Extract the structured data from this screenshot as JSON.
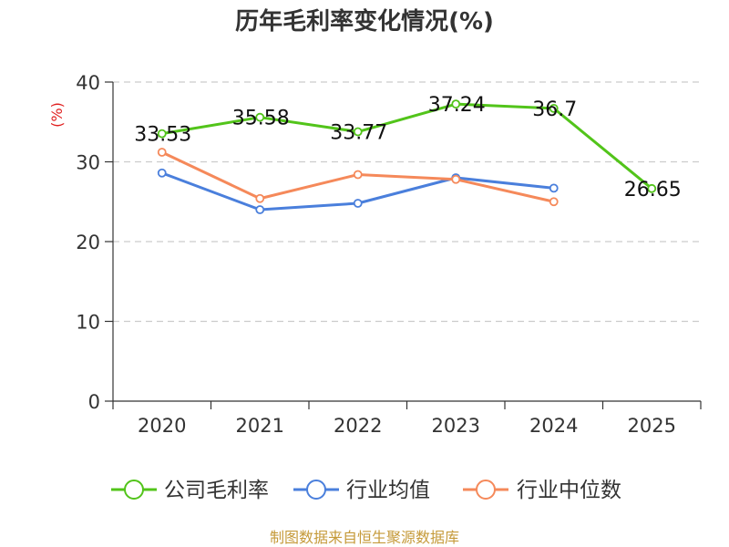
{
  "chart_data": {
    "type": "line",
    "title": "历年毛利率变化情况(%)",
    "ylabel": "(%)",
    "xlabel": "",
    "categories": [
      "2020",
      "2021",
      "2022",
      "2023",
      "2024",
      "2025"
    ],
    "ylim": [
      0,
      40
    ],
    "yticks": [
      0,
      10,
      20,
      30,
      40
    ],
    "grid": true,
    "legend_position": "bottom",
    "series": [
      {
        "name": "公司毛利率",
        "color": "#52c41a",
        "values": [
          33.53,
          35.58,
          33.77,
          37.24,
          36.7,
          26.65
        ],
        "data_labels": [
          "33.53",
          "35.58",
          "33.77",
          "37.24",
          "36.7",
          "26.65"
        ]
      },
      {
        "name": "行业均值",
        "color": "#4a7fdc",
        "values": [
          28.6,
          24.0,
          24.8,
          28.0,
          26.7,
          null
        ]
      },
      {
        "name": "行业中位数",
        "color": "#f5895a",
        "values": [
          31.2,
          25.4,
          28.4,
          27.8,
          25.0,
          null
        ]
      }
    ],
    "source": "制图数据来自恒生聚源数据库"
  }
}
